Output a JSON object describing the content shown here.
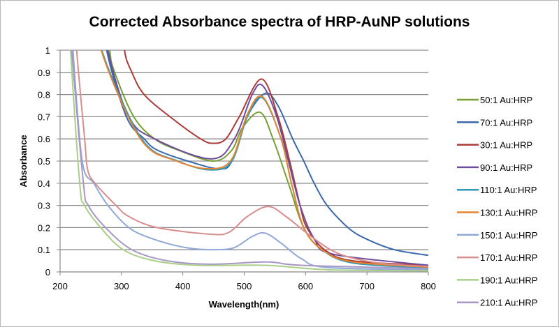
{
  "chart_data": {
    "type": "line",
    "title": "Corrected Absorbance spectra of HRP-AuNP solutions",
    "xlabel": "Wavelength(nm)",
    "ylabel": "Absorbance",
    "xlim": [
      200,
      800
    ],
    "ylim": [
      0,
      1
    ],
    "xticks": [
      "200",
      "300",
      "400",
      "500",
      "600",
      "700",
      "800"
    ],
    "yticks": [
      "0",
      "0.1",
      "0.2",
      "0.3",
      "0.4",
      "0.5",
      "0.6",
      "0.7",
      "0.8",
      "0.9",
      "1"
    ],
    "grid": "horizontal",
    "legend": "right",
    "series": [
      {
        "name": "50:1 Au:HRP",
        "color": "#77a033",
        "points": [
          [
            281,
            1
          ],
          [
            289,
            0.9
          ],
          [
            320,
            0.7
          ],
          [
            354,
            0.6
          ],
          [
            392,
            0.55
          ],
          [
            450,
            0.5
          ],
          [
            480,
            0.55
          ],
          [
            497,
            0.65
          ],
          [
            526,
            0.72
          ],
          [
            547,
            0.6
          ],
          [
            572,
            0.4
          ],
          [
            597,
            0.2
          ],
          [
            627,
            0.1
          ],
          [
            677,
            0.05
          ],
          [
            800,
            0.025
          ]
        ]
      },
      {
        "name": "70:1 Au:HRP",
        "color": "#3a68ad",
        "points": [
          [
            276,
            1
          ],
          [
            308,
            0.7
          ],
          [
            337,
            0.6
          ],
          [
            358,
            0.55
          ],
          [
            408,
            0.5
          ],
          [
            459,
            0.465
          ],
          [
            480,
            0.5
          ],
          [
            505,
            0.7
          ],
          [
            534,
            0.805
          ],
          [
            555,
            0.75
          ],
          [
            579,
            0.6
          ],
          [
            597,
            0.5
          ],
          [
            614,
            0.4
          ],
          [
            635,
            0.3
          ],
          [
            669,
            0.2
          ],
          [
            698,
            0.15
          ],
          [
            745,
            0.1
          ],
          [
            800,
            0.075
          ]
        ]
      },
      {
        "name": "30:1 Au:HRP",
        "color": "#ac3a38",
        "points": [
          [
            305,
            1
          ],
          [
            317,
            0.9
          ],
          [
            337,
            0.8
          ],
          [
            379,
            0.7
          ],
          [
            429,
            0.6
          ],
          [
            450,
            0.58
          ],
          [
            470,
            0.6
          ],
          [
            492,
            0.7
          ],
          [
            528,
            0.87
          ],
          [
            555,
            0.7
          ],
          [
            574,
            0.5
          ],
          [
            591,
            0.3
          ],
          [
            602,
            0.2
          ],
          [
            631,
            0.1
          ],
          [
            677,
            0.05
          ],
          [
            800,
            0.03
          ]
        ]
      },
      {
        "name": "90:1 Au:HRP",
        "color": "#6e4c9a",
        "points": [
          [
            278,
            1
          ],
          [
            312,
            0.7
          ],
          [
            354,
            0.6
          ],
          [
            446,
            0.51
          ],
          [
            484,
            0.6
          ],
          [
            513,
            0.8
          ],
          [
            530,
            0.84
          ],
          [
            553,
            0.7
          ],
          [
            572,
            0.5
          ],
          [
            591,
            0.3
          ],
          [
            614,
            0.15
          ],
          [
            645,
            0.08
          ],
          [
            800,
            0.03
          ]
        ]
      },
      {
        "name": "110:1 Au:HRP",
        "color": "#2f9bb5",
        "points": [
          [
            268,
            1
          ],
          [
            333,
            0.6
          ],
          [
            392,
            0.5
          ],
          [
            446,
            0.46
          ],
          [
            480,
            0.5
          ],
          [
            505,
            0.7
          ],
          [
            530,
            0.785
          ],
          [
            560,
            0.6
          ],
          [
            577,
            0.4
          ],
          [
            597,
            0.2
          ],
          [
            627,
            0.1
          ],
          [
            677,
            0.04
          ],
          [
            800,
            0.018
          ]
        ]
      },
      {
        "name": "130:1 Au:HRP",
        "color": "#e8832e",
        "points": [
          [
            267,
            1
          ],
          [
            331,
            0.6
          ],
          [
            390,
            0.5
          ],
          [
            446,
            0.465
          ],
          [
            480,
            0.51
          ],
          [
            505,
            0.71
          ],
          [
            530,
            0.79
          ],
          [
            560,
            0.6
          ],
          [
            577,
            0.4
          ],
          [
            597,
            0.2
          ],
          [
            627,
            0.1
          ],
          [
            677,
            0.045
          ],
          [
            800,
            0.022
          ]
        ]
      },
      {
        "name": "150:1 Au:HRP",
        "color": "#8ea9d8",
        "points": [
          [
            221,
            1
          ],
          [
            236,
            0.5
          ],
          [
            255,
            0.4
          ],
          [
            278,
            0.3
          ],
          [
            312,
            0.2
          ],
          [
            350,
            0.15
          ],
          [
            404,
            0.11
          ],
          [
            450,
            0.1
          ],
          [
            484,
            0.11
          ],
          [
            513,
            0.16
          ],
          [
            534,
            0.175
          ],
          [
            560,
            0.13
          ],
          [
            593,
            0.06
          ],
          [
            635,
            0.02
          ],
          [
            800,
            0.01
          ]
        ]
      },
      {
        "name": "170:1 Au:HRP",
        "color": "#d88e8c",
        "points": [
          [
            227,
            1
          ],
          [
            240,
            0.6
          ],
          [
            245,
            0.46
          ],
          [
            257,
            0.4
          ],
          [
            291,
            0.3
          ],
          [
            312,
            0.25
          ],
          [
            358,
            0.2
          ],
          [
            446,
            0.17
          ],
          [
            476,
            0.18
          ],
          [
            505,
            0.25
          ],
          [
            539,
            0.295
          ],
          [
            568,
            0.25
          ],
          [
            614,
            0.15
          ],
          [
            656,
            0.08
          ],
          [
            719,
            0.04
          ],
          [
            800,
            0.025
          ]
        ]
      },
      {
        "name": "190:1 Au:HRP",
        "color": "#a9cf85",
        "points": [
          [
            217,
            1
          ],
          [
            232,
            0.4
          ],
          [
            240,
            0.3
          ],
          [
            266,
            0.2
          ],
          [
            303,
            0.1
          ],
          [
            354,
            0.05
          ],
          [
            425,
            0.03
          ],
          [
            534,
            0.03
          ],
          [
            635,
            0.01
          ],
          [
            800,
            0.005
          ]
        ]
      },
      {
        "name": "210:1 Au:HRP",
        "color": "#a897c6",
        "points": [
          [
            219,
            1
          ],
          [
            238,
            0.4
          ],
          [
            246,
            0.3
          ],
          [
            274,
            0.2
          ],
          [
            317,
            0.1
          ],
          [
            375,
            0.05
          ],
          [
            446,
            0.035
          ],
          [
            539,
            0.045
          ],
          [
            593,
            0.03
          ],
          [
            800,
            0.015
          ]
        ]
      }
    ]
  }
}
